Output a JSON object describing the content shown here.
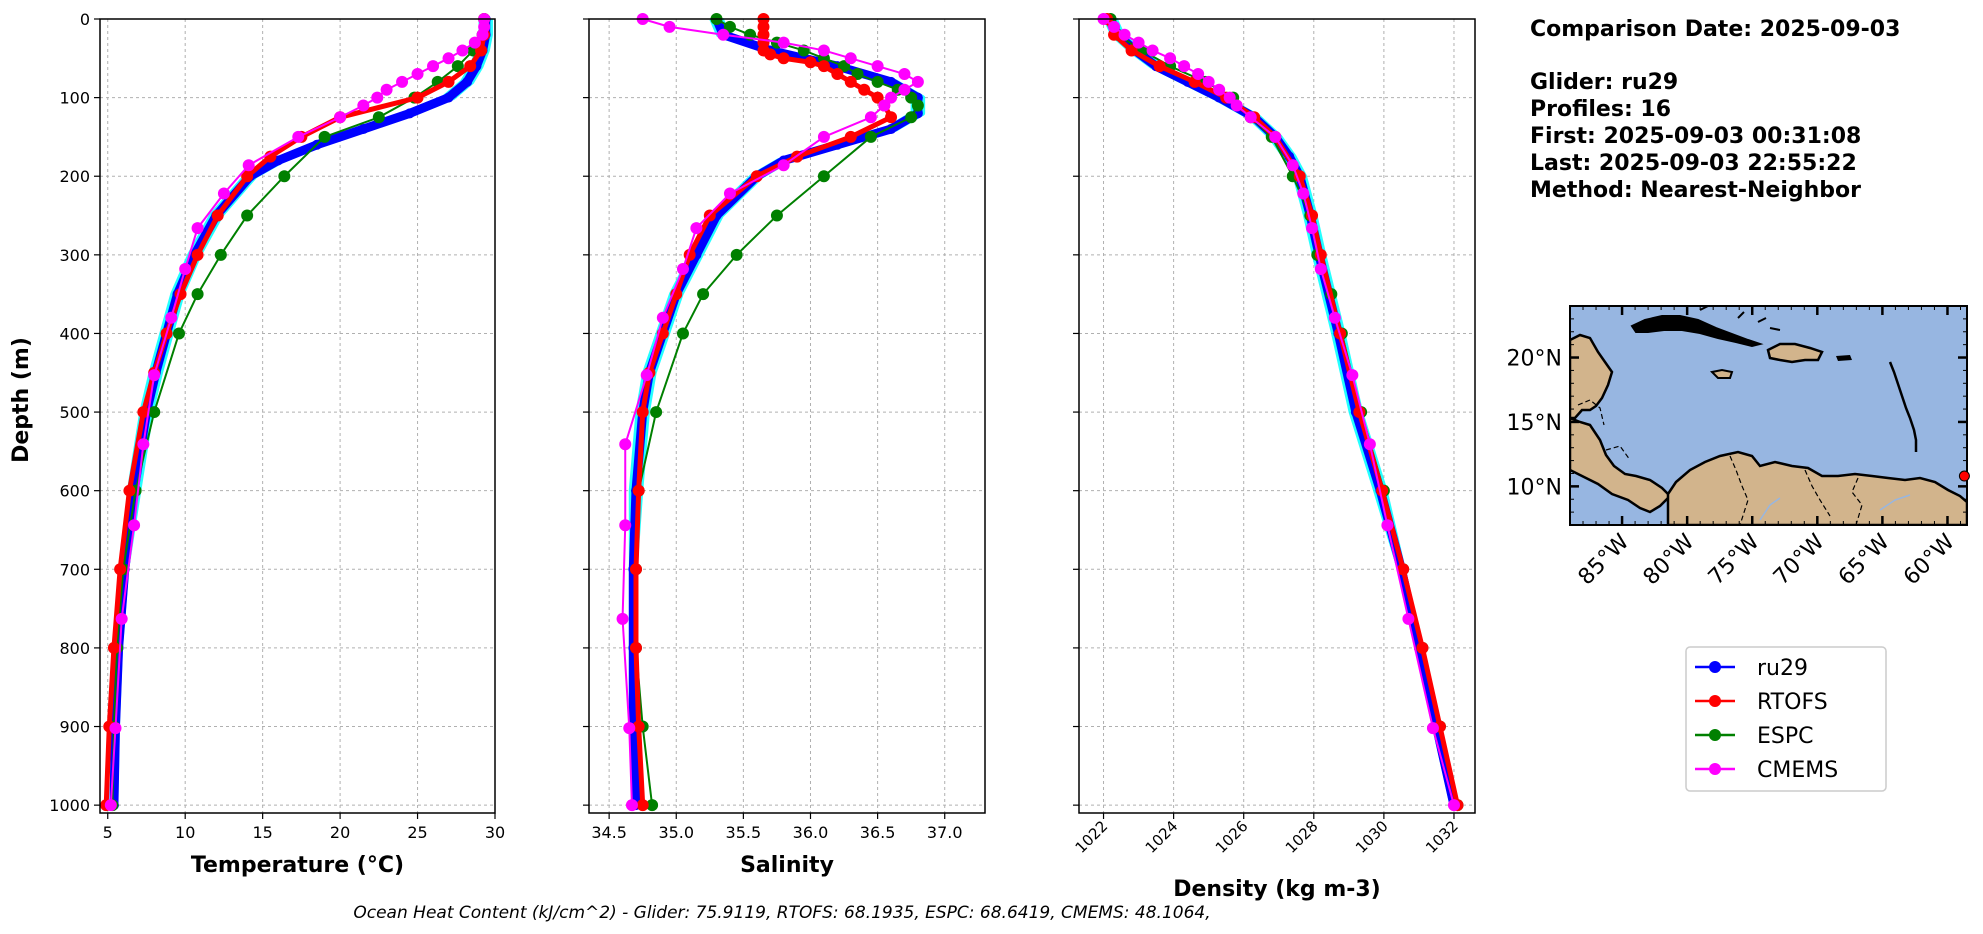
{
  "info": {
    "title": "Comparison Date: 2025-09-03",
    "lines": [
      "Glider: ru29",
      "Profiles: 16",
      "First: 2025-09-03 00:31:08",
      "Last: 2025-09-03 22:55:22",
      "Method: Nearest-Neighbor"
    ]
  },
  "footer": "Ocean Heat Content (kJ/cm^2) - Glider: 75.9119,  RTOFS: 68.1935,  ESPC: 68.6419,  CMEMS: 48.1064,",
  "colors": {
    "ru29": "#0000ff",
    "RTOFS": "#ff0000",
    "ESPC": "#008000",
    "CMEMS": "#ff00ff",
    "glider_profiles": "#00ffff",
    "ocean": "#97b6e1",
    "land": "#d2b48c"
  },
  "legend": [
    "ru29",
    "RTOFS",
    "ESPC",
    "CMEMS"
  ],
  "map": {
    "lat_ticks": [
      "20°N",
      "15°N",
      "10°N"
    ],
    "lon_ticks": [
      "85°W",
      "80°W",
      "75°W",
      "70°W",
      "65°W",
      "60°W"
    ],
    "lon_range": [
      -89,
      -58.5
    ],
    "lat_range": [
      7,
      24
    ],
    "glider_position": {
      "lon": -58.7,
      "lat": 10.8
    }
  },
  "chart_data": [
    {
      "type": "line",
      "xlabel": "Temperature (°C)",
      "ylabel": "Depth (m)",
      "xlim": [
        4.5,
        30
      ],
      "ylim": [
        1010,
        0
      ],
      "xticks": [
        5,
        10,
        15,
        20,
        25,
        30
      ],
      "yticks": [
        0,
        100,
        200,
        300,
        400,
        500,
        600,
        700,
        800,
        900,
        1000
      ],
      "grid": true,
      "series": [
        {
          "name": "ru29",
          "depth": [
            0,
            20,
            40,
            60,
            80,
            100,
            120,
            140,
            160,
            180,
            200,
            250,
            300,
            350,
            400,
            450,
            500,
            600,
            700,
            800,
            900,
            1000
          ],
          "values": [
            29.4,
            29.4,
            29.2,
            28.8,
            28.2,
            27.0,
            24.5,
            21.5,
            18.5,
            16.0,
            14.2,
            12.0,
            10.6,
            9.5,
            8.8,
            8.1,
            7.5,
            6.7,
            6.1,
            5.7,
            5.5,
            5.4
          ]
        },
        {
          "name": "RTOFS",
          "depth": [
            0,
            20,
            40,
            60,
            80,
            100,
            125,
            150,
            175,
            200,
            250,
            300,
            350,
            400,
            450,
            500,
            600,
            700,
            800,
            900,
            1000
          ],
          "values": [
            29.3,
            29.3,
            29.1,
            28.4,
            27.0,
            25.0,
            20.0,
            17.5,
            15.5,
            14.0,
            12.1,
            10.8,
            9.7,
            8.8,
            8.0,
            7.3,
            6.4,
            5.8,
            5.4,
            5.1,
            4.9
          ]
        },
        {
          "name": "ESPC",
          "depth": [
            0,
            20,
            40,
            60,
            80,
            100,
            125,
            150,
            200,
            250,
            300,
            350,
            400,
            500,
            600,
            700,
            800,
            900,
            1000
          ],
          "values": [
            29.3,
            29.2,
            28.6,
            27.6,
            26.3,
            24.8,
            22.5,
            19.0,
            16.4,
            14.0,
            12.3,
            10.8,
            9.6,
            8.0,
            6.8,
            6.0,
            5.6,
            5.4,
            5.3
          ]
        },
        {
          "name": "CMEMS",
          "depth": [
            0,
            10,
            20,
            30,
            40,
            50,
            60,
            70,
            80,
            90,
            100,
            110,
            125,
            150,
            186,
            222,
            266,
            318,
            380,
            453,
            541,
            644,
            763,
            902,
            1000
          ],
          "values": [
            29.3,
            29.3,
            29.2,
            28.7,
            27.9,
            27.0,
            26.0,
            25.0,
            24.0,
            23.0,
            22.4,
            21.5,
            20.0,
            17.3,
            14.1,
            12.5,
            10.8,
            10.0,
            9.1,
            8.0,
            7.3,
            6.7,
            5.9,
            5.5,
            5.2
          ]
        }
      ]
    },
    {
      "type": "line",
      "xlabel": "Salinity",
      "xlim": [
        34.35,
        37.3
      ],
      "ylim": [
        1010,
        0
      ],
      "xticks": [
        34.5,
        35.0,
        35.5,
        36.0,
        36.5,
        37.0
      ],
      "yticks": [
        0,
        100,
        200,
        300,
        400,
        500,
        600,
        700,
        800,
        900,
        1000
      ],
      "grid": true,
      "series": [
        {
          "name": "ru29",
          "depth": [
            0,
            20,
            40,
            60,
            80,
            100,
            120,
            140,
            160,
            180,
            200,
            250,
            300,
            350,
            400,
            450,
            500,
            600,
            700,
            800,
            900,
            1000
          ],
          "values": [
            35.3,
            35.35,
            35.7,
            36.2,
            36.6,
            36.8,
            36.8,
            36.6,
            36.2,
            35.8,
            35.6,
            35.3,
            35.15,
            35.0,
            34.9,
            34.8,
            34.75,
            34.7,
            34.68,
            34.68,
            34.68,
            34.7
          ]
        },
        {
          "name": "RTOFS",
          "depth": [
            0,
            10,
            20,
            30,
            40,
            45,
            50,
            55,
            60,
            70,
            80,
            90,
            100,
            110,
            125,
            150,
            175,
            200,
            250,
            300,
            350,
            400,
            450,
            500,
            600,
            700,
            800,
            900,
            1000
          ],
          "values": [
            35.65,
            35.65,
            35.65,
            35.65,
            35.65,
            35.7,
            35.8,
            36.0,
            36.1,
            36.2,
            36.3,
            36.4,
            36.5,
            36.55,
            36.6,
            36.3,
            35.9,
            35.6,
            35.25,
            35.1,
            35.0,
            34.9,
            34.8,
            34.75,
            34.72,
            34.7,
            34.7,
            34.72,
            34.75
          ]
        },
        {
          "name": "ESPC",
          "depth": [
            0,
            10,
            20,
            30,
            40,
            50,
            60,
            70,
            80,
            90,
            100,
            110,
            125,
            150,
            200,
            250,
            300,
            350,
            400,
            500,
            600,
            700,
            800,
            900,
            1000
          ],
          "values": [
            35.3,
            35.4,
            35.55,
            35.75,
            35.95,
            36.1,
            36.25,
            36.35,
            36.5,
            36.65,
            36.75,
            36.8,
            36.75,
            36.45,
            36.1,
            35.75,
            35.45,
            35.2,
            35.05,
            34.85,
            34.72,
            34.7,
            34.7,
            34.75,
            34.82
          ]
        },
        {
          "name": "CMEMS",
          "depth": [
            0,
            10,
            20,
            30,
            40,
            50,
            60,
            70,
            80,
            90,
            100,
            110,
            125,
            150,
            186,
            222,
            266,
            318,
            380,
            453,
            541,
            644,
            763,
            902,
            1000
          ],
          "values": [
            34.75,
            34.95,
            35.35,
            35.8,
            36.1,
            36.3,
            36.5,
            36.7,
            36.8,
            36.7,
            36.6,
            36.55,
            36.45,
            36.1,
            35.8,
            35.4,
            35.15,
            35.05,
            34.9,
            34.78,
            34.62,
            34.62,
            34.6,
            34.65,
            34.67
          ]
        }
      ]
    },
    {
      "type": "line",
      "xlabel": "Density (kg m-3)",
      "xlim": [
        1021.3,
        1032.6
      ],
      "ylim": [
        1010,
        0
      ],
      "xticks": [
        1022,
        1024,
        1026,
        1028,
        1030,
        1032
      ],
      "yticks": [
        0,
        100,
        200,
        300,
        400,
        500,
        600,
        700,
        800,
        900,
        1000
      ],
      "grid": true,
      "series": [
        {
          "name": "ru29",
          "depth": [
            0,
            20,
            40,
            60,
            80,
            100,
            125,
            150,
            175,
            200,
            250,
            300,
            400,
            500,
            600,
            700,
            800,
            900,
            1000
          ],
          "values": [
            1022.2,
            1022.4,
            1022.9,
            1023.5,
            1024.4,
            1025.3,
            1026.3,
            1026.9,
            1027.3,
            1027.6,
            1027.9,
            1028.15,
            1028.7,
            1029.2,
            1029.9,
            1030.5,
            1031.0,
            1031.5,
            1032.0
          ]
        },
        {
          "name": "RTOFS",
          "depth": [
            0,
            20,
            40,
            60,
            80,
            100,
            125,
            150,
            200,
            250,
            300,
            400,
            500,
            600,
            700,
            800,
            900,
            1000
          ],
          "values": [
            1022.1,
            1022.3,
            1022.8,
            1023.6,
            1024.6,
            1025.5,
            1026.3,
            1026.9,
            1027.6,
            1027.95,
            1028.2,
            1028.75,
            1029.3,
            1029.95,
            1030.55,
            1031.1,
            1031.6,
            1032.1
          ]
        },
        {
          "name": "ESPC",
          "depth": [
            0,
            20,
            40,
            60,
            80,
            100,
            125,
            150,
            200,
            250,
            300,
            350,
            400,
            500,
            600,
            700,
            800,
            900,
            1000
          ],
          "values": [
            1022.2,
            1022.4,
            1023.1,
            1023.9,
            1024.9,
            1025.7,
            1026.2,
            1026.8,
            1027.4,
            1027.9,
            1028.1,
            1028.5,
            1028.8,
            1029.35,
            1030.0,
            1030.55,
            1031.1,
            1031.6,
            1032.1
          ]
        },
        {
          "name": "CMEMS",
          "depth": [
            0,
            10,
            20,
            30,
            40,
            50,
            60,
            70,
            80,
            90,
            100,
            110,
            125,
            150,
            186,
            222,
            266,
            318,
            380,
            453,
            541,
            644,
            763,
            902,
            1000
          ],
          "values": [
            1022.0,
            1022.3,
            1022.6,
            1023.0,
            1023.4,
            1023.9,
            1024.3,
            1024.7,
            1025.0,
            1025.3,
            1025.6,
            1025.8,
            1026.2,
            1026.9,
            1027.4,
            1027.7,
            1027.95,
            1028.2,
            1028.6,
            1029.1,
            1029.6,
            1030.1,
            1030.7,
            1031.4,
            1032.0
          ]
        }
      ]
    }
  ]
}
